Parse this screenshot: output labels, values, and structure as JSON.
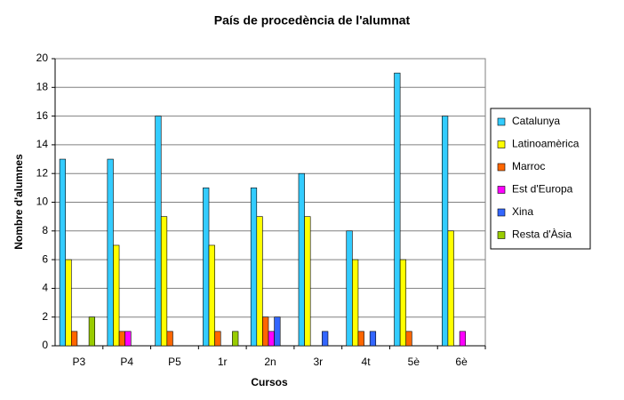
{
  "chart_data": {
    "type": "bar",
    "title": "País de procedència de l'alumnat",
    "x_label": "Cursos",
    "y_label": "Nombre d'alumnes",
    "categories": [
      "P3",
      "P4",
      "P5",
      "1r",
      "2n",
      "3r",
      "4t",
      "5è",
      "6è"
    ],
    "series": [
      {
        "name": "Catalunya",
        "color": "#33ccff",
        "values": [
          13,
          13,
          16,
          11,
          11,
          12,
          8,
          19,
          16
        ]
      },
      {
        "name": "Latinoamèrica",
        "color": "#ffff00",
        "values": [
          6,
          7,
          9,
          7,
          9,
          9,
          6,
          6,
          8
        ]
      },
      {
        "name": "Marroc",
        "color": "#ff6600",
        "values": [
          1,
          1,
          1,
          1,
          2,
          0,
          1,
          1,
          0
        ]
      },
      {
        "name": "Est d'Europa",
        "color": "#ff00ff",
        "values": [
          0,
          1,
          0,
          0,
          1,
          0,
          0,
          0,
          1
        ]
      },
      {
        "name": "Xina",
        "color": "#3366ff",
        "values": [
          0,
          0,
          0,
          0,
          2,
          1,
          1,
          0,
          0
        ]
      },
      {
        "name": "Resta d'Àsia",
        "color": "#99cc00",
        "values": [
          2,
          0,
          0,
          1,
          0,
          0,
          0,
          0,
          0
        ]
      }
    ],
    "ylim": [
      0,
      20
    ],
    "yticks": [
      0,
      2,
      4,
      6,
      8,
      10,
      12,
      14,
      16,
      18,
      20
    ],
    "grid": true,
    "legend": "right"
  }
}
